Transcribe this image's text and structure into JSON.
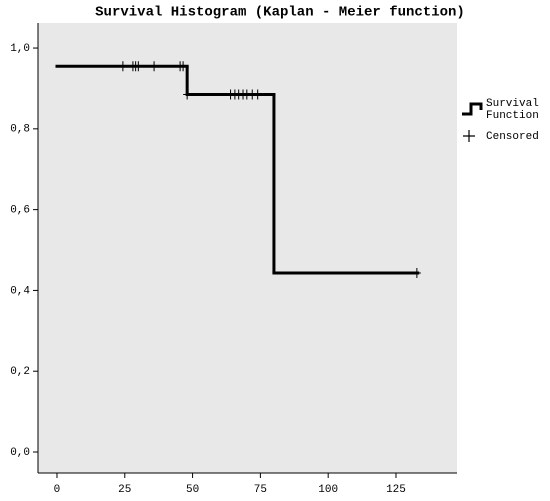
{
  "chart_data": {
    "type": "km-step",
    "title": "Survival Histogram (Kaplan - Meier function)",
    "xlim": [
      -7,
      147.5
    ],
    "ylim": [
      -0.052,
      1.062
    ],
    "xticks": [
      0,
      25,
      50,
      75,
      100,
      125
    ],
    "yticks": [
      {
        "value": 0,
        "label": "0,0"
      },
      {
        "value": 0.2,
        "label": "0,2"
      },
      {
        "value": 0.4,
        "label": "0,4"
      },
      {
        "value": 0.6,
        "label": "0,6"
      },
      {
        "value": 0.8,
        "label": "0,8"
      },
      {
        "value": 1,
        "label": "1,0"
      }
    ],
    "background": "#e8e8e8",
    "color": "#000000",
    "survival": {
      "name": "Survival Function",
      "x": [
        0,
        48,
        80,
        133
      ],
      "values": [
        0.955,
        0.885,
        0.443,
        0.443
      ]
    },
    "censored": {
      "name": "Censored",
      "x": [
        24.3,
        28,
        29,
        30,
        35.8,
        45.4,
        46.5,
        48,
        64,
        65.6,
        67,
        68.6,
        70,
        72,
        74,
        132.7
      ],
      "values": [
        0.955,
        0.955,
        0.955,
        0.955,
        0.955,
        0.955,
        0.955,
        0.885,
        0.885,
        0.885,
        0.885,
        0.885,
        0.885,
        0.885,
        0.885,
        0.443
      ]
    }
  }
}
